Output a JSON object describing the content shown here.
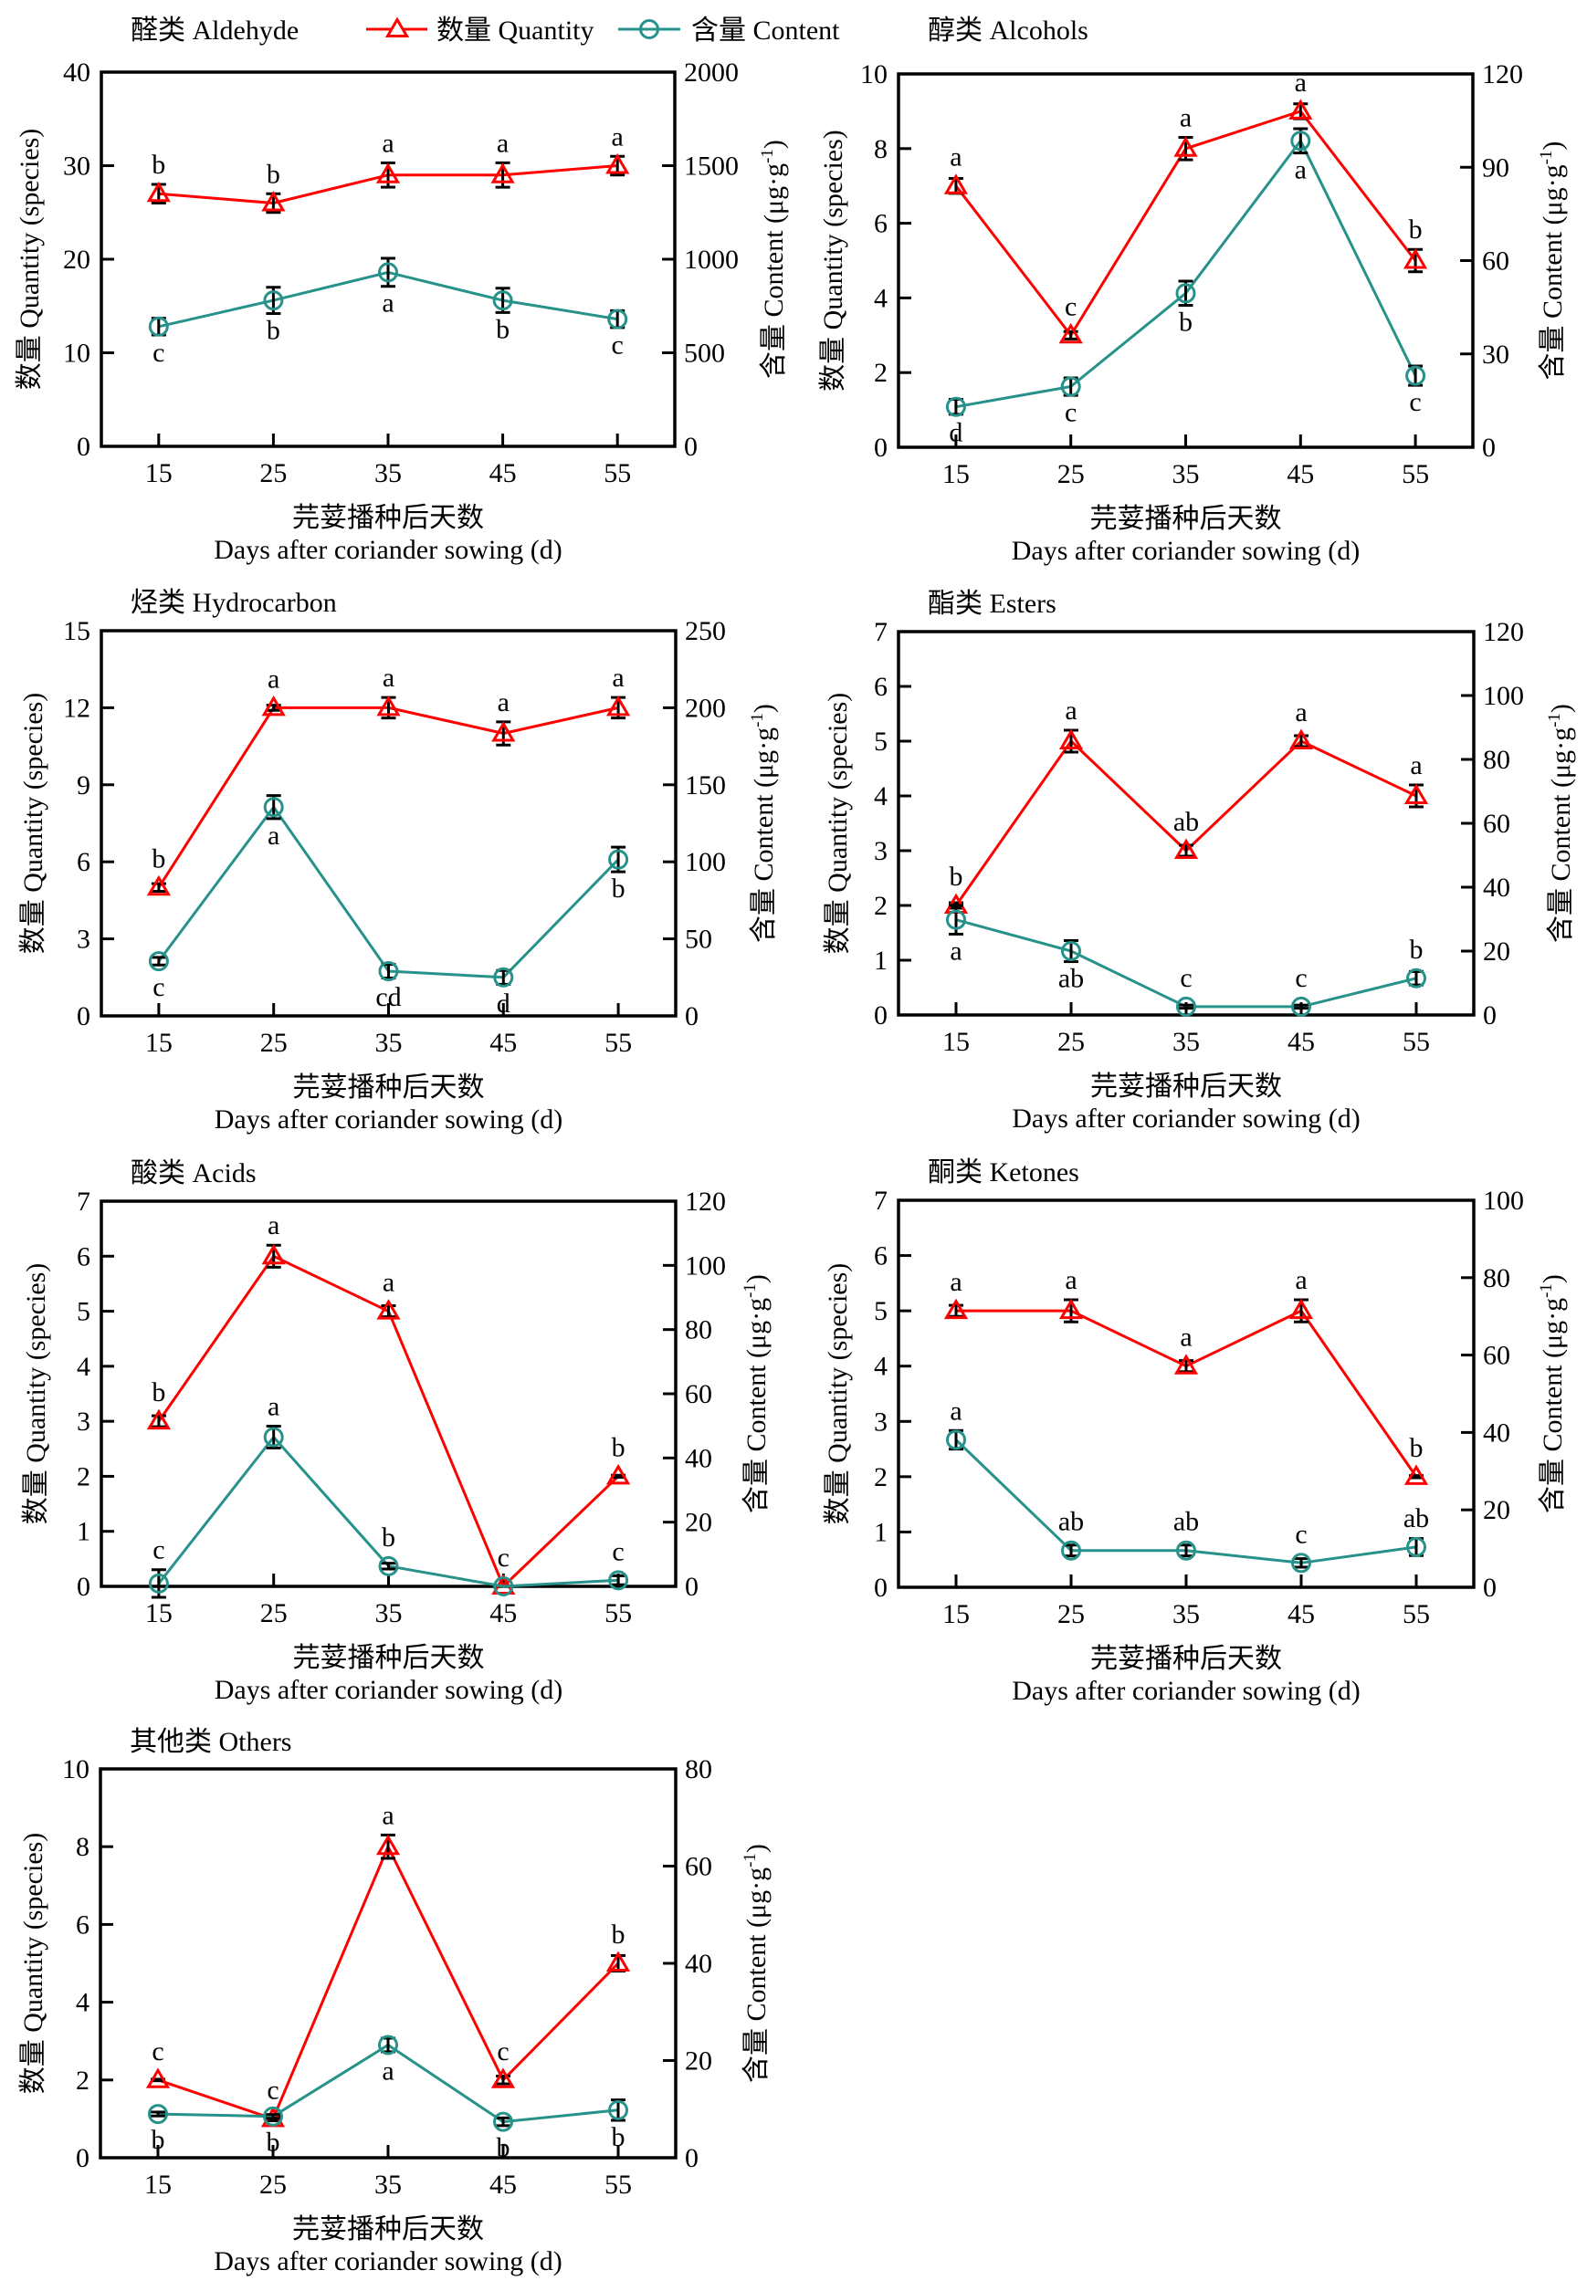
{
  "figure": {
    "legend": {
      "quantity_label": "数量 Quantity",
      "content_label": "含量 Content",
      "placement": "top"
    },
    "colors": {
      "quantity": "#ff0000",
      "content": "#26928a",
      "error_bar": "#000000",
      "axis": "#000000"
    }
  },
  "chart_data": [
    {
      "type": "line",
      "title": "醛类 Aldehyde",
      "x": [
        15,
        25,
        35,
        45,
        55
      ],
      "xlim": [
        10,
        60
      ],
      "xticks": [
        15,
        25,
        35,
        45,
        55
      ],
      "xlabel_cn": "芫荽播种后天数",
      "xlabel_en": "Days after coriander sowing (d)",
      "ylabel_left": "数量 Quantity (species)",
      "ylabel_right": {
        "text": "含量 Content (μg·g",
        "superscript": "-1",
        "suffix": ")"
      },
      "ylim_left": [
        0,
        40
      ],
      "yticks_left": [
        0,
        10,
        20,
        30,
        40
      ],
      "ylim_right": [
        0,
        2000
      ],
      "yticks_right": [
        0,
        500,
        1000,
        1500,
        2000
      ],
      "grid": false,
      "series": [
        {
          "name": "数量 Quantity",
          "axis": "left",
          "marker": "triangle",
          "color_key": "quantity",
          "values": [
            27,
            26,
            29,
            29,
            30
          ],
          "errors": [
            1.0,
            1.0,
            1.3,
            1.3,
            1.0
          ],
          "letters": [
            "b",
            "b",
            "a",
            "a",
            "a"
          ],
          "letter_pos": [
            "above",
            "above",
            "above",
            "above",
            "above"
          ]
        },
        {
          "name": "含量 Content",
          "axis": "right",
          "marker": "circle",
          "color_key": "content",
          "values": [
            640,
            780,
            930,
            780,
            680
          ],
          "errors": [
            45,
            70,
            75,
            65,
            45
          ],
          "letters": [
            "c",
            "b",
            "a",
            "b",
            "c"
          ],
          "letter_pos": [
            "below",
            "below",
            "below",
            "below",
            "below"
          ]
        }
      ]
    },
    {
      "type": "line",
      "title": "醇类 Alcohols",
      "x": [
        15,
        25,
        35,
        45,
        55
      ],
      "xlim": [
        10,
        60
      ],
      "xticks": [
        15,
        25,
        35,
        45,
        55
      ],
      "xlabel_cn": "芫荽播种后天数",
      "xlabel_en": "Days after coriander sowing (d)",
      "ylabel_left": "数量 Quantity (species)",
      "ylabel_right": {
        "text": "含量 Content (μg·g",
        "superscript": "-1",
        "suffix": ")"
      },
      "ylim_left": [
        0,
        10
      ],
      "yticks_left": [
        0,
        2,
        4,
        6,
        8,
        10
      ],
      "ylim_right": [
        0,
        120
      ],
      "yticks_right": [
        0,
        30,
        60,
        90,
        120
      ],
      "grid": false,
      "series": [
        {
          "name": "数量 Quantity",
          "axis": "left",
          "marker": "triangle",
          "color_key": "quantity",
          "values": [
            7,
            3,
            8,
            9,
            5
          ],
          "errors": [
            0.2,
            0.1,
            0.3,
            0.2,
            0.3
          ],
          "letters": [
            "a",
            "c",
            "a",
            "a",
            "b"
          ],
          "letter_pos": [
            "above",
            "above",
            "above",
            "above",
            "above"
          ]
        },
        {
          "name": "含量 Content",
          "axis": "right",
          "marker": "circle",
          "color_key": "content",
          "values": [
            13,
            19.5,
            49.5,
            98.5,
            23
          ],
          "errors": [
            2.4,
            2.8,
            3.9,
            3.9,
            3.1
          ],
          "letters": [
            "d",
            "c",
            "b",
            "a",
            "c"
          ],
          "letter_pos": [
            "below",
            "below",
            "below",
            "below",
            "below"
          ]
        }
      ]
    },
    {
      "type": "line",
      "title": "烃类 Hydrocarbon",
      "x": [
        15,
        25,
        35,
        45,
        55
      ],
      "xlim": [
        10,
        60
      ],
      "xticks": [
        15,
        25,
        35,
        45,
        55
      ],
      "xlabel_cn": "芫荽播种后天数",
      "xlabel_en": "Days after coriander sowing (d)",
      "ylabel_left": "数量 Quantity (species)",
      "ylabel_right": {
        "text": "含量 Content (μg·g",
        "superscript": "-1",
        "suffix": ")"
      },
      "ylim_left": [
        0,
        15
      ],
      "yticks_left": [
        0,
        3,
        6,
        9,
        12,
        15
      ],
      "ylim_right": [
        0,
        250
      ],
      "yticks_right": [
        0,
        50,
        100,
        150,
        200,
        250
      ],
      "grid": false,
      "series": [
        {
          "name": "数量 Quantity",
          "axis": "left",
          "marker": "triangle",
          "color_key": "quantity",
          "values": [
            5,
            12,
            12,
            11,
            12
          ],
          "errors": [
            0.15,
            0.1,
            0.4,
            0.45,
            0.4
          ],
          "letters": [
            "b",
            "a",
            "a",
            "a",
            "a"
          ],
          "letter_pos": [
            "above",
            "above",
            "above",
            "above",
            "above"
          ]
        },
        {
          "name": "含量 Content",
          "axis": "right",
          "marker": "circle",
          "color_key": "content",
          "values": [
            35.5,
            135.5,
            29,
            25,
            101.5
          ],
          "errors": [
            2.5,
            7.5,
            4.4,
            4.5,
            8
          ],
          "letters": [
            "c",
            "a",
            "cd",
            "d",
            "b"
          ],
          "letter_pos": [
            "below",
            "below",
            "below",
            "below",
            "below"
          ]
        }
      ]
    },
    {
      "type": "line",
      "title": "酯类 Esters",
      "x": [
        15,
        25,
        35,
        45,
        55
      ],
      "xlim": [
        10,
        60
      ],
      "xticks": [
        15,
        25,
        35,
        45,
        55
      ],
      "xlabel_cn": "芫荽播种后天数",
      "xlabel_en": "Days after coriander sowing (d)",
      "ylabel_left": "数量 Quantity (species)",
      "ylabel_right": {
        "text": "含量 Content (μg·g",
        "superscript": "-1",
        "suffix": ")"
      },
      "ylim_left": [
        0,
        7
      ],
      "yticks_left": [
        0,
        1,
        2,
        3,
        4,
        5,
        6,
        7
      ],
      "ylim_right": [
        0,
        120
      ],
      "yticks_right": [
        0,
        20,
        40,
        60,
        80,
        100,
        120
      ],
      "grid": false,
      "series": [
        {
          "name": "数量 Quantity",
          "axis": "left",
          "marker": "triangle",
          "color_key": "quantity",
          "values": [
            2,
            5,
            3,
            5,
            4
          ],
          "errors": [
            0.05,
            0.2,
            0.1,
            0.1,
            0.2
          ],
          "letters": [
            "b",
            "a",
            "ab",
            "a",
            "a"
          ],
          "letter_pos": [
            "above",
            "above",
            "above",
            "above",
            "above"
          ]
        },
        {
          "name": "含量 Content",
          "axis": "right",
          "marker": "circle",
          "color_key": "content",
          "values": [
            29.8,
            20,
            2.6,
            2.6,
            11.5
          ],
          "errors": [
            4.5,
            3.3,
            0.5,
            0.5,
            2.1
          ],
          "letters": [
            "a",
            "ab",
            "c",
            "c",
            "b"
          ],
          "letter_pos": [
            "below",
            "below",
            "above",
            "above",
            "above"
          ]
        }
      ]
    },
    {
      "type": "line",
      "title": "酸类 Acids",
      "x": [
        15,
        25,
        35,
        45,
        55
      ],
      "xlim": [
        10,
        60
      ],
      "xticks": [
        15,
        25,
        35,
        45,
        55
      ],
      "xlabel_cn": "芫荽播种后天数",
      "xlabel_en": "Days after coriander sowing (d)",
      "ylabel_left": "数量 Quantity (species)",
      "ylabel_right": {
        "text": "含量 Content (μg·g",
        "superscript": "-1",
        "suffix": ")"
      },
      "ylim_left": [
        0,
        7
      ],
      "yticks_left": [
        0,
        1,
        2,
        3,
        4,
        5,
        6,
        7
      ],
      "ylim_right": [
        0,
        120
      ],
      "yticks_right": [
        0,
        20,
        40,
        60,
        80,
        100,
        120
      ],
      "grid": false,
      "series": [
        {
          "name": "数量 Quantity",
          "axis": "left",
          "marker": "triangle",
          "color_key": "quantity",
          "values": [
            3,
            6,
            5,
            0,
            2
          ],
          "errors": [
            0.1,
            0.2,
            0.1,
            0,
            0.02
          ],
          "letters": [
            "b",
            "a",
            "a",
            "",
            "b"
          ],
          "letter_pos": [
            "above",
            "above",
            "above",
            "above",
            "above"
          ]
        },
        {
          "name": "含量 Content",
          "axis": "right",
          "marker": "circle",
          "color_key": "content",
          "values": [
            0.9,
            46.5,
            6.3,
            0,
            1.9
          ],
          "errors": [
            4.3,
            3.4,
            0.9,
            0,
            1.4
          ],
          "letters": [
            "c",
            "a",
            "b",
            "c",
            "c"
          ],
          "letter_pos": [
            "above",
            "above",
            "above",
            "above",
            "above"
          ]
        }
      ]
    },
    {
      "type": "line",
      "title": "酮类 Ketones",
      "x": [
        15,
        25,
        35,
        45,
        55
      ],
      "xlim": [
        10,
        60
      ],
      "xticks": [
        15,
        25,
        35,
        45,
        55
      ],
      "xlabel_cn": "芫荽播种后天数",
      "xlabel_en": "Days after coriander sowing (d)",
      "ylabel_left": "数量 Quantity (species)",
      "ylabel_right": {
        "text": "含量 Content (μg·g",
        "superscript": "-1",
        "suffix": ")"
      },
      "ylim_left": [
        0,
        7
      ],
      "yticks_left": [
        0,
        1,
        2,
        3,
        4,
        5,
        6,
        7
      ],
      "ylim_right": [
        0,
        100
      ],
      "yticks_right": [
        0,
        20,
        40,
        60,
        80,
        100
      ],
      "grid": false,
      "series": [
        {
          "name": "数量 Quantity",
          "axis": "left",
          "marker": "triangle",
          "color_key": "quantity",
          "values": [
            5,
            5,
            4,
            5,
            2
          ],
          "errors": [
            0.1,
            0.2,
            0.1,
            0.2,
            0.02
          ],
          "letters": [
            "a",
            "a",
            "a",
            "a",
            "b"
          ],
          "letter_pos": [
            "above",
            "above",
            "above",
            "above",
            "above"
          ]
        },
        {
          "name": "含量 Content",
          "axis": "right",
          "marker": "circle",
          "color_key": "content",
          "values": [
            38.1,
            9.5,
            9.5,
            6.3,
            10.4
          ],
          "errors": [
            2.4,
            1.4,
            1.4,
            1.1,
            2.2
          ],
          "letters": [
            "a",
            "ab",
            "ab",
            "c",
            "ab"
          ],
          "letter_pos": [
            "above",
            "above",
            "above",
            "above",
            "above"
          ]
        }
      ]
    },
    {
      "type": "line",
      "title": "其他类 Others",
      "x": [
        15,
        25,
        35,
        45,
        55
      ],
      "xlim": [
        10,
        60
      ],
      "xticks": [
        15,
        25,
        35,
        45,
        55
      ],
      "xlabel_cn": "芫荽播种后天数",
      "xlabel_en": "Days after coriander sowing (d)",
      "ylabel_left": "数量 Quantity (species)",
      "ylabel_right": {
        "text": "含量 Content (μg·g",
        "superscript": "-1",
        "suffix": ")"
      },
      "ylim_left": [
        0,
        10
      ],
      "yticks_left": [
        0,
        2,
        4,
        6,
        8,
        10
      ],
      "ylim_right": [
        0,
        80
      ],
      "yticks_right": [
        0,
        20,
        40,
        60,
        80
      ],
      "grid": false,
      "series": [
        {
          "name": "数量 Quantity",
          "axis": "left",
          "marker": "triangle",
          "color_key": "quantity",
          "values": [
            2,
            1,
            8,
            2,
            5
          ],
          "errors": [
            0.02,
            0.05,
            0.3,
            0.1,
            0.2
          ],
          "letters": [
            "c",
            "c",
            "a",
            "c",
            "b"
          ],
          "letter_pos": [
            "above",
            "above",
            "above",
            "above",
            "above"
          ]
        },
        {
          "name": "含量 Content",
          "axis": "right",
          "marker": "circle",
          "color_key": "content",
          "values": [
            9.0,
            8.5,
            23.2,
            7.4,
            9.8
          ],
          "errors": [
            0.4,
            0.4,
            1.4,
            0.8,
            2.1
          ],
          "letters": [
            "b",
            "b",
            "a",
            "b",
            "b"
          ],
          "letter_pos": [
            "below",
            "below",
            "below",
            "below",
            "below"
          ]
        }
      ]
    }
  ]
}
